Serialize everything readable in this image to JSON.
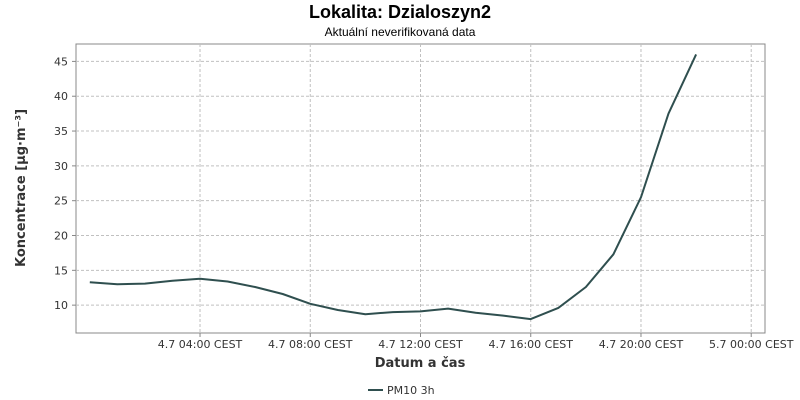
{
  "chart_data": {
    "type": "line",
    "title": "Lokalita: Dzialoszyn2",
    "subtitle": "Aktuální neverifikovaná data",
    "xlabel": "Datum a čas",
    "ylabel": "Koncentrace [µg·m⁻³]",
    "x_tick_labels": [
      "4.7 04:00 CEST",
      "4.7 08:00 CEST",
      "4.7 12:00 CEST",
      "4.7 16:00 CEST",
      "4.7 20:00 CEST",
      "5.7 00:00 CEST"
    ],
    "x_tick_hours": [
      4,
      8,
      12,
      16,
      20,
      24
    ],
    "x_range_hours": [
      -0.5,
      24.5
    ],
    "y_ticks": [
      10,
      15,
      20,
      25,
      30,
      35,
      40,
      45
    ],
    "ylim": [
      6,
      47.5
    ],
    "grid": true,
    "legend_position": "bottom",
    "series": [
      {
        "name": "PM10 3h",
        "color": "#2f4f4f",
        "x": [
          0,
          1,
          2,
          3,
          4,
          5,
          6,
          7,
          8,
          9,
          10,
          11,
          12,
          13,
          14,
          15,
          16,
          17,
          18,
          19,
          20,
          21,
          22,
          23
        ],
        "values": [
          13.3,
          13.0,
          13.1,
          13.5,
          13.8,
          13.4,
          12.6,
          11.6,
          10.2,
          9.3,
          8.7,
          9.0,
          9.1,
          9.5,
          8.9,
          8.5,
          8.0,
          9.6,
          12.6,
          17.3,
          25.5,
          37.5,
          46.0,
          null
        ]
      }
    ]
  }
}
